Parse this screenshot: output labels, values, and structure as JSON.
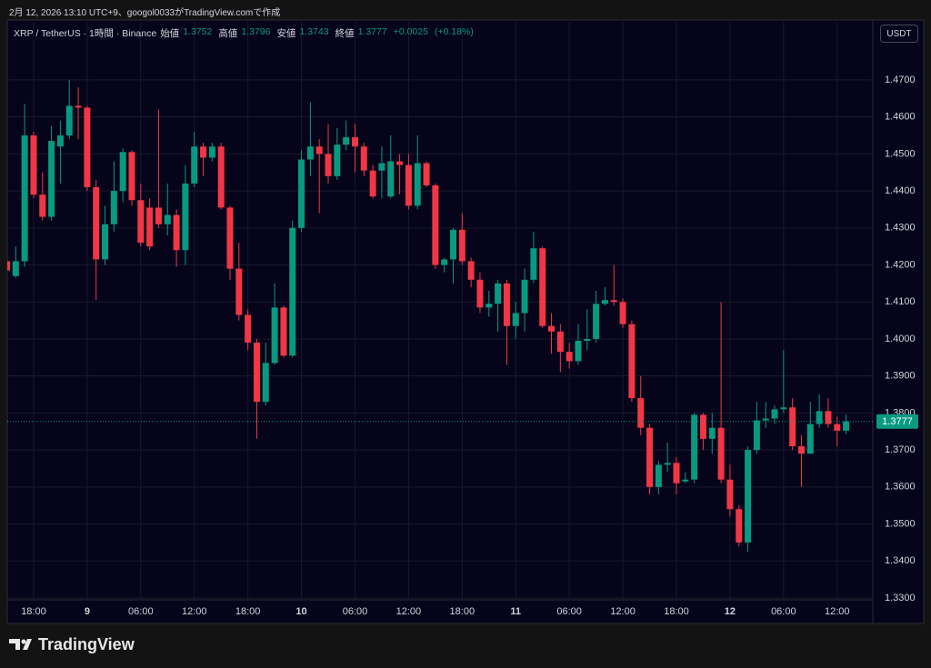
{
  "watermark": "2月 12, 2026 13:10 UTC+9、googol0033がTradingView.comで作成",
  "currency": "USDT",
  "brand": "TradingView",
  "chart_data": {
    "type": "candlestick",
    "title": "XRP / TetherUS · 1時間 · Binance",
    "legend": [
      {
        "label": "始値",
        "value": "1.3752"
      },
      {
        "label": "高値",
        "value": "1.3796"
      },
      {
        "label": "安値",
        "value": "1.3743"
      },
      {
        "label": "終値",
        "value": "1.3777"
      }
    ],
    "change": "+0.0025",
    "change_pct": "(+0.18%)",
    "up_color": "#089981",
    "down_color": "#f23645",
    "grid": true,
    "categories": [
      null,
      null,
      null,
      "18:00",
      null,
      null,
      null,
      null,
      null,
      "9",
      null,
      null,
      null,
      null,
      null,
      "06:00",
      null,
      null,
      null,
      null,
      null,
      "12:00",
      null,
      null,
      null,
      null,
      null,
      "18:00",
      null,
      null,
      null,
      null,
      null,
      "10",
      null,
      null,
      null,
      null,
      null,
      "06:00",
      null,
      null,
      null,
      null,
      null,
      "12:00",
      null,
      null,
      null,
      null,
      null,
      "18:00",
      null,
      null,
      null,
      null,
      null,
      "11",
      null,
      null,
      null,
      null,
      null,
      "06:00",
      null,
      null,
      null,
      null,
      null,
      "12:00",
      null,
      null,
      null,
      null,
      null,
      "18:00",
      null,
      null,
      null,
      null,
      null,
      "12",
      null,
      null,
      null,
      null,
      null,
      "06:00",
      null,
      null,
      null,
      null,
      null,
      "12:00",
      null
    ],
    "open": [
      1.421,
      1.417,
      1.421,
      1.455,
      1.439,
      1.433,
      1.452,
      1.455,
      1.463,
      1.4625,
      1.441,
      1.4215,
      1.431,
      1.44,
      1.4505,
      1.4375,
      1.4355,
      1.4355,
      1.431,
      1.4335,
      1.424,
      1.442,
      1.452,
      1.449,
      1.452,
      1.4355,
      1.419,
      1.4065,
      1.399,
      1.383,
      1.3935,
      1.4085,
      1.3955,
      1.43,
      1.4485,
      1.452,
      1.45,
      1.444,
      1.4525,
      1.4545,
      1.452,
      1.4455,
      1.4455,
      1.4385,
      1.448,
      1.447,
      1.436,
      1.4475,
      1.4415,
      1.42,
      1.4215,
      1.4295,
      1.421,
      1.416,
      1.4085,
      1.4095,
      1.415,
      1.4035,
      1.407,
      1.416,
      1.4245,
      1.4035,
      1.402,
      1.3965,
      1.394,
      1.3995,
      1.4,
      1.4095,
      1.4105,
      1.41,
      1.404,
      1.384,
      1.376,
      1.36,
      1.366,
      1.3665,
      1.3615,
      1.362,
      1.3795,
      1.373,
      1.376,
      1.362,
      1.354,
      1.345,
      1.37,
      1.378,
      1.3785,
      1.381,
      1.3815,
      1.371,
      1.369,
      1.377,
      1.3805,
      1.377,
      1.3752
    ],
    "high": [
      1.4225,
      1.425,
      1.4635,
      1.456,
      1.445,
      1.4575,
      1.459,
      1.47,
      1.468,
      1.463,
      1.443,
      1.436,
      1.448,
      1.4515,
      1.451,
      1.442,
      1.438,
      1.462,
      1.442,
      1.435,
      1.447,
      1.456,
      1.453,
      1.453,
      1.453,
      1.436,
      1.426,
      1.408,
      1.4,
      1.399,
      1.415,
      1.409,
      1.432,
      1.451,
      1.464,
      1.454,
      1.458,
      1.457,
      1.459,
      1.458,
      1.453,
      1.447,
      1.452,
      1.455,
      1.45,
      1.45,
      1.455,
      1.448,
      1.442,
      1.422,
      1.43,
      1.434,
      1.422,
      1.418,
      1.413,
      1.416,
      1.416,
      1.41,
      1.419,
      1.429,
      1.425,
      1.407,
      1.404,
      1.399,
      1.404,
      1.408,
      1.413,
      1.414,
      1.42,
      1.411,
      1.405,
      1.39,
      1.377,
      1.367,
      1.372,
      1.368,
      1.364,
      1.38,
      1.38,
      1.38,
      1.41,
      1.366,
      1.355,
      1.371,
      1.383,
      1.383,
      1.382,
      1.397,
      1.384,
      1.374,
      1.383,
      1.385,
      1.384,
      1.379,
      1.3796
    ],
    "low": [
      1.418,
      1.4165,
      1.4195,
      1.438,
      1.432,
      1.432,
      1.442,
      1.454,
      1.454,
      1.44,
      1.4105,
      1.42,
      1.429,
      1.437,
      1.436,
      1.425,
      1.424,
      1.43,
      1.428,
      1.4195,
      1.42,
      1.441,
      1.444,
      1.448,
      1.435,
      1.416,
      1.405,
      1.397,
      1.373,
      1.382,
      1.393,
      1.395,
      1.395,
      1.429,
      1.444,
      1.434,
      1.442,
      1.443,
      1.451,
      1.445,
      1.444,
      1.438,
      1.438,
      1.438,
      1.439,
      1.435,
      1.435,
      1.441,
      1.419,
      1.418,
      1.415,
      1.42,
      1.414,
      1.407,
      1.406,
      1.402,
      1.393,
      1.4,
      1.402,
      1.415,
      1.403,
      1.396,
      1.391,
      1.392,
      1.393,
      1.397,
      1.399,
      1.409,
      1.409,
      1.403,
      1.383,
      1.374,
      1.358,
      1.358,
      1.364,
      1.358,
      1.361,
      1.361,
      1.37,
      1.369,
      1.361,
      1.352,
      1.344,
      1.3425,
      1.369,
      1.376,
      1.377,
      1.38,
      1.37,
      1.36,
      1.369,
      1.376,
      1.376,
      1.371,
      1.3743
    ],
    "close": [
      1.4185,
      1.421,
      1.455,
      1.439,
      1.433,
      1.4535,
      1.455,
      1.463,
      1.4625,
      1.441,
      1.4215,
      1.431,
      1.44,
      1.4505,
      1.4375,
      1.426,
      1.425,
      1.431,
      1.4335,
      1.424,
      1.442,
      1.452,
      1.449,
      1.452,
      1.4355,
      1.419,
      1.4065,
      1.399,
      1.383,
      1.3935,
      1.4085,
      1.3955,
      1.43,
      1.4485,
      1.452,
      1.45,
      1.444,
      1.4525,
      1.4545,
      1.452,
      1.4455,
      1.4385,
      1.4475,
      1.448,
      1.447,
      1.436,
      1.4475,
      1.4415,
      1.42,
      1.4215,
      1.4295,
      1.421,
      1.416,
      1.4085,
      1.4095,
      1.415,
      1.4035,
      1.407,
      1.416,
      1.4245,
      1.4035,
      1.402,
      1.3965,
      1.394,
      1.3995,
      1.4,
      1.4095,
      1.4105,
      1.41,
      1.404,
      1.384,
      1.376,
      1.36,
      1.366,
      1.3665,
      1.361,
      1.362,
      1.3795,
      1.373,
      1.376,
      1.362,
      1.354,
      1.345,
      1.37,
      1.378,
      1.3785,
      1.381,
      1.3815,
      1.371,
      1.369,
      1.377,
      1.3805,
      1.377,
      1.3752,
      1.3777
    ],
    "ylim": [
      1.3295,
      1.4857
    ],
    "yticks": [
      {
        "value": 1.33,
        "label": "1.3300"
      },
      {
        "value": 1.34,
        "label": "1.3400"
      },
      {
        "value": 1.35,
        "label": "1.3500"
      },
      {
        "value": 1.36,
        "label": "1.3600"
      },
      {
        "value": 1.37,
        "label": "1.3700"
      },
      {
        "value": 1.38,
        "label": "1.3800"
      },
      {
        "value": 1.39,
        "label": "1.3900"
      },
      {
        "value": 1.4,
        "label": "1.4000"
      },
      {
        "value": 1.41,
        "label": "1.4100"
      },
      {
        "value": 1.42,
        "label": "1.4200"
      },
      {
        "value": 1.43,
        "label": "1.4300"
      },
      {
        "value": 1.44,
        "label": "1.4400"
      },
      {
        "value": 1.45,
        "label": "1.4500"
      },
      {
        "value": 1.46,
        "label": "1.4600"
      },
      {
        "value": 1.47,
        "label": "1.4700"
      }
    ],
    "last_price": {
      "value": 1.3777,
      "label": "1.3777"
    }
  }
}
